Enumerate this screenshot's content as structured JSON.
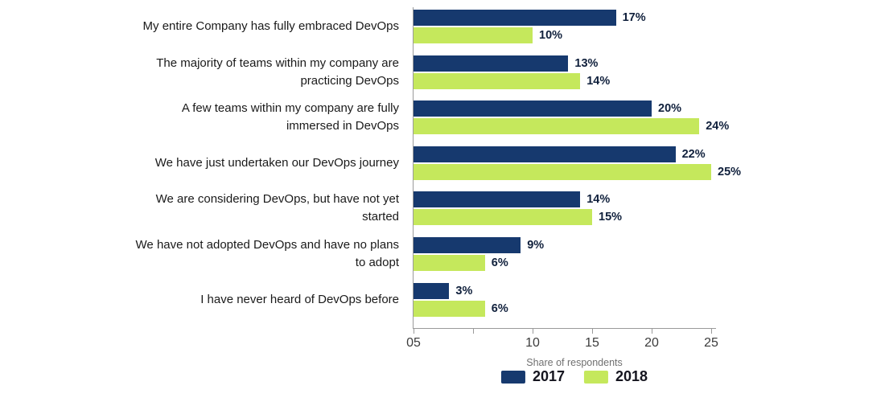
{
  "chart_data": {
    "type": "bar",
    "orientation": "horizontal",
    "title": "",
    "xlabel": "Share of respondents",
    "value_suffix": "%",
    "xlim": [
      0,
      25
    ],
    "grid": false,
    "legend_position": "bottom",
    "categories": [
      "My entire Company has fully embraced DevOps",
      "The majority of teams within my company are practicing DevOps",
      "A few teams within my company are fully immersed in DevOps",
      "We have just undertaken our DevOps journey",
      "We are considering DevOps, but have not yet started",
      "We have not adopted DevOps and have no plans to adopt",
      "I have never heard of DevOps before"
    ],
    "series": [
      {
        "name": "2017",
        "color": "#16396e",
        "values": [
          17,
          13,
          20,
          22,
          14,
          9,
          3
        ]
      },
      {
        "name": "2018",
        "color": "#c5e85c",
        "values": [
          10,
          14,
          24,
          25,
          15,
          6,
          6
        ]
      }
    ],
    "x_ticks": [
      {
        "value": 0,
        "label": "05"
      },
      {
        "value": 5,
        "label": ""
      },
      {
        "value": 10,
        "label": "10"
      },
      {
        "value": 15,
        "label": "15"
      },
      {
        "value": 20,
        "label": "20"
      },
      {
        "value": 25,
        "label": "25"
      }
    ]
  }
}
